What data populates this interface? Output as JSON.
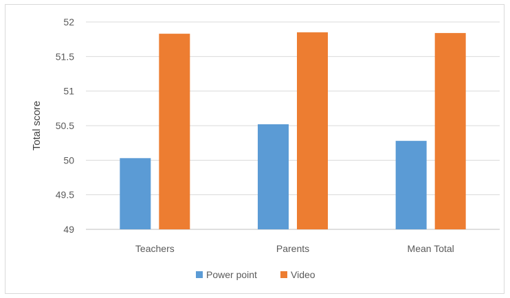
{
  "chart_data": {
    "type": "bar",
    "ylabel": "Total score",
    "xlabel": "",
    "categories": [
      "Teachers",
      "Parents",
      "Mean Total"
    ],
    "series": [
      {
        "name": "Power point",
        "color": "#5b9bd5",
        "values": [
          50.03,
          50.52,
          50.28
        ]
      },
      {
        "name": "Video",
        "color": "#ed7d31",
        "values": [
          51.83,
          51.85,
          51.84
        ]
      }
    ],
    "ylim": [
      49,
      52
    ],
    "yticks": [
      "49",
      "49.5",
      "50",
      "50.5",
      "51",
      "51.5",
      "52"
    ],
    "grid": true,
    "legend": "bottom"
  }
}
